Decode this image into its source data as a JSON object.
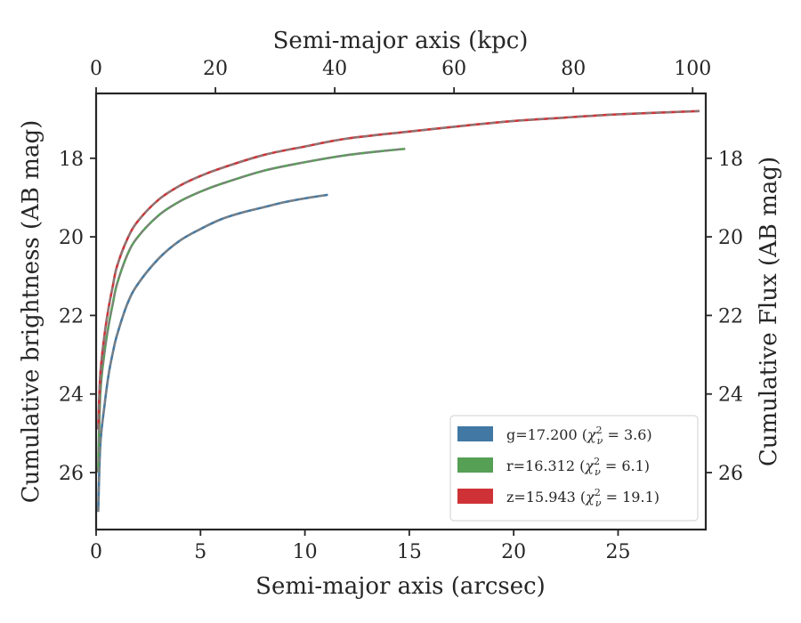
{
  "chart_data": {
    "type": "line",
    "xlabel": "Semi-major axis (arcsec)",
    "ylabel": "Cumulative brightness (AB mag)",
    "top_xlabel": "Semi-major axis (kpc)",
    "right_ylabel": "Cumulative Flux (AB mag)",
    "xlim": [
      0,
      29.2
    ],
    "ylim": [
      27.45,
      16.35
    ],
    "top_xlim": [
      0,
      102.2
    ],
    "y_inverted": true,
    "grid": false,
    "legend_position": "lower-right",
    "x_ticks": [
      0,
      5,
      10,
      15,
      20,
      25
    ],
    "top_x_ticks": [
      0,
      20,
      40,
      60,
      80,
      100
    ],
    "y_ticks": [
      18,
      20,
      22,
      24,
      26
    ],
    "model_line_color": "#808080",
    "series": [
      {
        "name": "g=17.200",
        "chi2": "3.6",
        "color": "#4178a4",
        "x": [
          0.1,
          0.2,
          0.4,
          0.6,
          0.8,
          1.0,
          1.5,
          2.0,
          3.0,
          4.0,
          5.0,
          6.0,
          7.0,
          8.0,
          9.0,
          10.0,
          11.1
        ],
        "y": [
          27.0,
          25.3,
          24.3,
          23.5,
          22.95,
          22.5,
          21.7,
          21.2,
          20.55,
          20.1,
          19.8,
          19.55,
          19.38,
          19.25,
          19.12,
          19.02,
          18.93
        ]
      },
      {
        "name": "r=16.312",
        "chi2": "6.1",
        "color": "#55a055",
        "x": [
          0.1,
          0.2,
          0.4,
          0.6,
          0.8,
          1.0,
          1.5,
          2.0,
          3.0,
          4.0,
          5.0,
          6.0,
          8.0,
          10.0,
          12.0,
          14.0,
          14.8
        ],
        "y": [
          26.0,
          24.0,
          22.95,
          22.25,
          21.7,
          21.2,
          20.45,
          20.0,
          19.45,
          19.1,
          18.85,
          18.65,
          18.32,
          18.1,
          17.92,
          17.8,
          17.76
        ]
      },
      {
        "name": "z=15.943",
        "chi2": "19.1",
        "color": "#cf3236",
        "x": [
          0.1,
          0.2,
          0.4,
          0.6,
          0.8,
          1.0,
          1.5,
          2.0,
          3.0,
          4.0,
          5.0,
          6.0,
          8.0,
          10.0,
          12.0,
          15.0,
          18.0,
          20.0,
          22.0,
          25.0,
          28.9
        ],
        "y": [
          24.9,
          23.5,
          22.5,
          21.8,
          21.25,
          20.75,
          20.05,
          19.6,
          19.05,
          18.7,
          18.45,
          18.25,
          17.92,
          17.7,
          17.5,
          17.32,
          17.15,
          17.05,
          16.98,
          16.88,
          16.8
        ]
      }
    ]
  }
}
